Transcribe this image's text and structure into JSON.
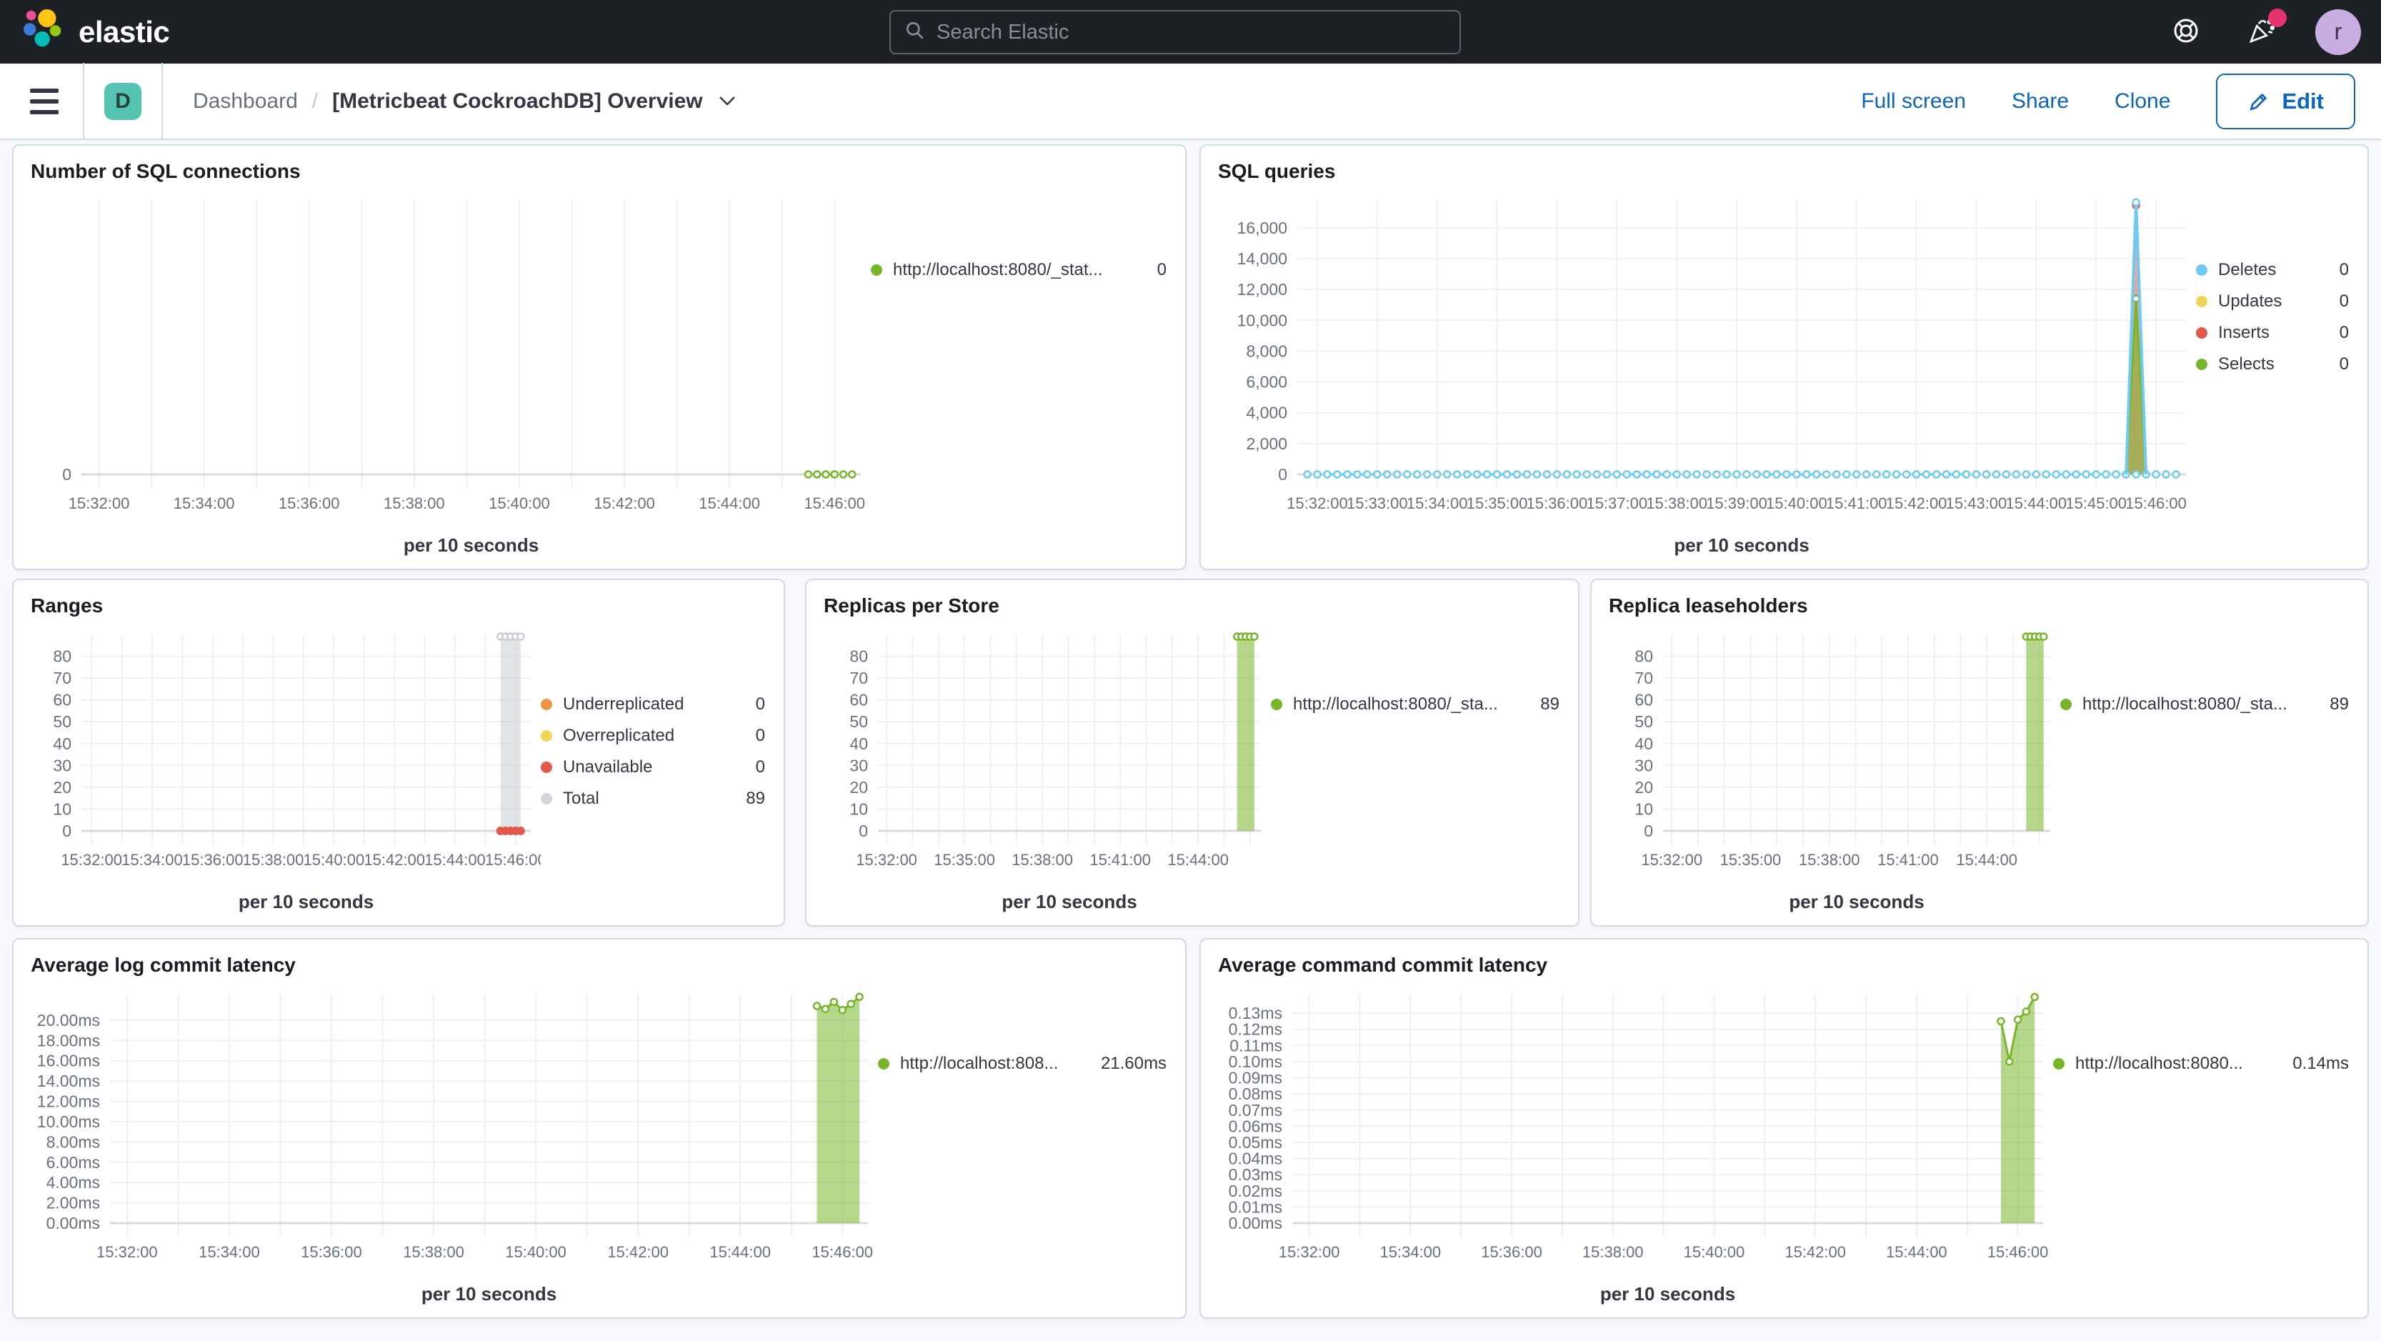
{
  "header": {
    "brand": "elastic",
    "search_placeholder": "Search Elastic",
    "avatar_initial": "r"
  },
  "toolbar": {
    "badge_letter": "D",
    "breadcrumb_root": "Dashboard",
    "breadcrumb_sep": "/",
    "title": "[Metricbeat CockroachDB] Overview",
    "actions": {
      "full_screen": "Full screen",
      "share": "Share",
      "clone": "Clone",
      "edit": "Edit"
    }
  },
  "colors": {
    "accent_blue": "#0B64BD",
    "green": "#77B62A",
    "light_blue": "#6DCBF2",
    "yellow": "#F2D557",
    "red": "#E4574C",
    "orange": "#EE9640",
    "gray": "#D3D6DC",
    "badge_teal": "#54C4B1",
    "notification_pink": "#E6336E"
  },
  "panels": [
    {
      "id": "sql-connections",
      "title": "Number of SQL connections",
      "chart_data": {
        "type": "line",
        "xlabel": "per 10 seconds",
        "x_domain": [
          "15:31:40",
          "15:46:30"
        ],
        "x_ticks": [
          "15:32:00",
          "15:34:00",
          "15:36:00",
          "15:38:00",
          "15:40:00",
          "15:42:00",
          "15:44:00",
          "15:46:00"
        ],
        "y_max": 1,
        "y_ticks": {
          "values": [
            0
          ],
          "labels": [
            "0"
          ]
        },
        "legend": [
          {
            "label": "http://localhost:8080/_stat...",
            "value": "0",
            "color": "#77B62A"
          }
        ],
        "series": [
          {
            "name": "http://localhost:8080/_stat...",
            "color": "#77B62A",
            "segments": [
              {
                "type": "line",
                "dashed": true,
                "markers": true,
                "points": [
                  [
                    "15:45:30",
                    0
                  ],
                  [
                    "15:45:40",
                    0
                  ],
                  [
                    "15:45:50",
                    0
                  ],
                  [
                    "15:46:00",
                    0
                  ],
                  [
                    "15:46:10",
                    0
                  ],
                  [
                    "15:46:20",
                    0
                  ]
                ]
              }
            ]
          }
        ]
      }
    },
    {
      "id": "sql-queries",
      "title": "SQL queries",
      "chart_data": {
        "type": "area",
        "xlabel": "per 10 seconds",
        "x_domain": [
          "15:31:40",
          "15:46:30"
        ],
        "x_ticks": [
          "15:32:00",
          "15:33:00",
          "15:34:00",
          "15:35:00",
          "15:36:00",
          "15:37:00",
          "15:38:00",
          "15:39:00",
          "15:40:00",
          "15:41:00",
          "15:42:00",
          "15:43:00",
          "15:44:00",
          "15:45:00",
          "15:46:00"
        ],
        "y_max": 17800,
        "y_ticks": {
          "values": [
            0,
            2000,
            4000,
            6000,
            8000,
            10000,
            12000,
            14000,
            16000
          ],
          "labels": [
            "0",
            "2,000",
            "4,000",
            "6,000",
            "8,000",
            "10,000",
            "12,000",
            "14,000",
            "16,000"
          ]
        },
        "legend": [
          {
            "label": "Deletes",
            "value": "0",
            "color": "#6DCBF2"
          },
          {
            "label": "Updates",
            "value": "0",
            "color": "#F2D557"
          },
          {
            "label": "Inserts",
            "value": "0",
            "color": "#E4574C"
          },
          {
            "label": "Selects",
            "value": "0",
            "color": "#77B62A"
          }
        ],
        "series": [
          {
            "name": "Updates",
            "color": "#F2D557",
            "segments": [
              {
                "type": "line",
                "points": [
                  [
                    "15:45:30",
                    0
                  ],
                  [
                    "15:45:50",
                    0
                  ]
                ],
                "width": 3
              }
            ]
          },
          {
            "name": "Inserts",
            "color": "#E4574C",
            "segments": [
              {
                "type": "area",
                "fill_opacity": 0.55,
                "markers": "peak",
                "points": [
                  [
                    "15:45:30",
                    0
                  ],
                  [
                    "15:45:40",
                    17450
                  ],
                  [
                    "15:45:50",
                    0
                  ]
                ]
              }
            ]
          },
          {
            "name": "Selects",
            "color": "#77B62A",
            "segments": [
              {
                "type": "area",
                "fill_opacity": 0.6,
                "markers": "peak",
                "points": [
                  [
                    "15:45:30",
                    0
                  ],
                  [
                    "15:45:40",
                    11400
                  ],
                  [
                    "15:45:50",
                    0
                  ]
                ]
              }
            ]
          },
          {
            "name": "Deletes",
            "color": "#6DCBF2",
            "segments": [
              {
                "type": "line",
                "dashed": true,
                "markers": true,
                "flat": {
                  "from": "15:31:50",
                  "to": "15:46:20",
                  "step": 10,
                  "value": 0
                }
              },
              {
                "type": "line",
                "width": 4,
                "markers": "peak",
                "points": [
                  [
                    "15:45:30",
                    0
                  ],
                  [
                    "15:45:40",
                    17650
                  ],
                  [
                    "15:45:50",
                    0
                  ]
                ]
              }
            ]
          }
        ]
      }
    },
    {
      "id": "ranges",
      "title": "Ranges",
      "chart_data": {
        "type": "bar",
        "xlabel": "per 10 seconds",
        "x_domain": [
          "15:31:40",
          "15:46:30"
        ],
        "x_ticks": [
          "15:32:00",
          "15:34:00",
          "15:36:00",
          "15:38:00",
          "15:40:00",
          "15:42:00",
          "15:44:00",
          "15:46:00"
        ],
        "y_max": 90,
        "y_ticks": {
          "values": [
            0,
            10,
            20,
            30,
            40,
            50,
            60,
            70,
            80
          ],
          "labels": [
            "0",
            "10",
            "20",
            "30",
            "40",
            "50",
            "60",
            "70",
            "80"
          ]
        },
        "legend": [
          {
            "label": "Underreplicated",
            "value": "0",
            "color": "#EE9640"
          },
          {
            "label": "Overreplicated",
            "value": "0",
            "color": "#F2D557"
          },
          {
            "label": "Unavailable",
            "value": "0",
            "color": "#E4574C"
          },
          {
            "label": "Total",
            "value": "89",
            "color": "#D3D6DC"
          }
        ],
        "series": [
          {
            "name": "Total",
            "color": "#C9CDD4",
            "segments": [
              {
                "type": "band",
                "fill_opacity": 0.55,
                "markers": true,
                "points": [
                  [
                    "15:45:30",
                    89
                  ],
                  [
                    "15:45:40",
                    89
                  ],
                  [
                    "15:45:50",
                    89
                  ],
                  [
                    "15:46:00",
                    89
                  ],
                  [
                    "15:46:10",
                    89
                  ]
                ]
              }
            ]
          },
          {
            "name": "Unavailable",
            "color": "#E4574C",
            "segments": [
              {
                "type": "dots",
                "points": [
                  [
                    "15:45:30",
                    0
                  ],
                  [
                    "15:45:40",
                    0
                  ],
                  [
                    "15:45:50",
                    0
                  ],
                  [
                    "15:46:00",
                    0
                  ],
                  [
                    "15:46:10",
                    0
                  ]
                ]
              }
            ]
          }
        ]
      }
    },
    {
      "id": "replicas-per-store",
      "title": "Replicas per Store",
      "chart_data": {
        "type": "bar",
        "xlabel": "per 10 seconds",
        "x_domain": [
          "15:31:40",
          "15:46:25"
        ],
        "x_ticks": [
          "15:32:00",
          "15:35:00",
          "15:38:00",
          "15:41:00",
          "15:44:00"
        ],
        "y_max": 90,
        "y_ticks": {
          "values": [
            0,
            10,
            20,
            30,
            40,
            50,
            60,
            70,
            80
          ],
          "labels": [
            "0",
            "10",
            "20",
            "30",
            "40",
            "50",
            "60",
            "70",
            "80"
          ]
        },
        "legend": [
          {
            "label": "http://localhost:8080/_sta...",
            "value": "89",
            "color": "#77B62A"
          }
        ],
        "series": [
          {
            "name": "http://localhost:8080/_sta...",
            "color": "#77B62A",
            "segments": [
              {
                "type": "band",
                "fill_opacity": 0.55,
                "markers": true,
                "points": [
                  [
                    "15:45:30",
                    89
                  ],
                  [
                    "15:45:40",
                    89
                  ],
                  [
                    "15:45:50",
                    89
                  ],
                  [
                    "15:46:00",
                    89
                  ],
                  [
                    "15:46:10",
                    89
                  ]
                ]
              }
            ]
          }
        ]
      }
    },
    {
      "id": "replica-leaseholders",
      "title": "Replica leaseholders",
      "chart_data": {
        "type": "bar",
        "xlabel": "per 10 seconds",
        "x_domain": [
          "15:31:40",
          "15:46:25"
        ],
        "x_ticks": [
          "15:32:00",
          "15:35:00",
          "15:38:00",
          "15:41:00",
          "15:44:00"
        ],
        "y_max": 90,
        "y_ticks": {
          "values": [
            0,
            10,
            20,
            30,
            40,
            50,
            60,
            70,
            80
          ],
          "labels": [
            "0",
            "10",
            "20",
            "30",
            "40",
            "50",
            "60",
            "70",
            "80"
          ]
        },
        "legend": [
          {
            "label": "http://localhost:8080/_sta...",
            "value": "89",
            "color": "#77B62A"
          }
        ],
        "series": [
          {
            "name": "http://localhost:8080/_sta...",
            "color": "#77B62A",
            "segments": [
              {
                "type": "band",
                "fill_opacity": 0.55,
                "markers": true,
                "points": [
                  [
                    "15:45:30",
                    89
                  ],
                  [
                    "15:45:40",
                    89
                  ],
                  [
                    "15:45:50",
                    89
                  ],
                  [
                    "15:46:00",
                    89
                  ],
                  [
                    "15:46:10",
                    89
                  ]
                ]
              }
            ]
          }
        ]
      }
    },
    {
      "id": "avg-log-commit-latency",
      "title": "Average log commit latency",
      "chart_data": {
        "type": "area",
        "xlabel": "per 10 seconds",
        "x_domain": [
          "15:31:40",
          "15:46:30"
        ],
        "x_ticks": [
          "15:32:00",
          "15:34:00",
          "15:36:00",
          "15:38:00",
          "15:40:00",
          "15:42:00",
          "15:44:00",
          "15:46:00"
        ],
        "y_max": 22.6,
        "y_ticks": {
          "values": [
            0,
            2,
            4,
            6,
            8,
            10,
            12,
            14,
            16,
            18,
            20
          ],
          "labels": [
            "0.00ms",
            "2.00ms",
            "4.00ms",
            "6.00ms",
            "8.00ms",
            "10.00ms",
            "12.00ms",
            "14.00ms",
            "16.00ms",
            "18.00ms",
            "20.00ms"
          ]
        },
        "legend": [
          {
            "label": "http://localhost:808...",
            "value": "21.60ms",
            "color": "#77B62A"
          }
        ],
        "series": [
          {
            "name": "http://localhost:808...",
            "color": "#77B62A",
            "segments": [
              {
                "type": "area",
                "fill_opacity": 0.55,
                "markers": true,
                "points": [
                  [
                    "15:45:30",
                    21.4
                  ],
                  [
                    "15:45:40",
                    21.1
                  ],
                  [
                    "15:45:50",
                    21.8
                  ],
                  [
                    "15:46:00",
                    21.0
                  ],
                  [
                    "15:46:10",
                    21.6
                  ],
                  [
                    "15:46:20",
                    22.3
                  ]
                ]
              }
            ]
          }
        ]
      }
    },
    {
      "id": "avg-command-commit-latency",
      "title": "Average command commit latency",
      "chart_data": {
        "type": "area",
        "xlabel": "per 10 seconds",
        "x_domain": [
          "15:31:40",
          "15:46:30"
        ],
        "x_ticks": [
          "15:32:00",
          "15:34:00",
          "15:36:00",
          "15:38:00",
          "15:40:00",
          "15:42:00",
          "15:44:00",
          "15:46:00"
        ],
        "y_max": 0.142,
        "y_ticks": {
          "values": [
            0,
            0.01,
            0.02,
            0.03,
            0.04,
            0.05,
            0.06,
            0.07,
            0.08,
            0.09,
            0.1,
            0.11,
            0.12,
            0.13
          ],
          "labels": [
            "0.00ms",
            "0.01ms",
            "0.02ms",
            "0.03ms",
            "0.04ms",
            "0.05ms",
            "0.06ms",
            "0.07ms",
            "0.08ms",
            "0.09ms",
            "0.10ms",
            "0.11ms",
            "0.12ms",
            "0.13ms"
          ]
        },
        "legend": [
          {
            "label": "http://localhost:8080...",
            "value": "0.14ms",
            "color": "#77B62A"
          }
        ],
        "series": [
          {
            "name": "http://localhost:8080...",
            "color": "#77B62A",
            "segments": [
              {
                "type": "area",
                "fill_opacity": 0.55,
                "markers": true,
                "points": [
                  [
                    "15:45:40",
                    0.125
                  ],
                  [
                    "15:45:50",
                    0.1
                  ],
                  [
                    "15:46:00",
                    0.126
                  ],
                  [
                    "15:46:10",
                    0.131
                  ],
                  [
                    "15:46:20",
                    0.14
                  ]
                ]
              }
            ]
          }
        ]
      }
    }
  ]
}
